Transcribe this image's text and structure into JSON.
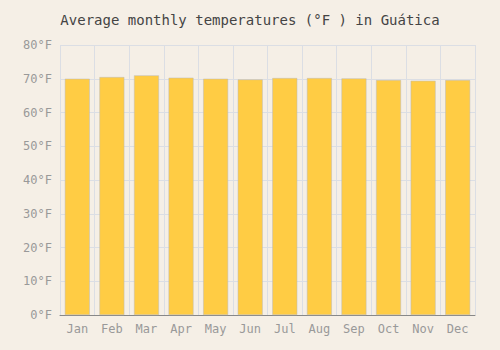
{
  "chart_data": {
    "type": "bar",
    "title": "Average monthly temperatures (°F ) in Guática",
    "categories": [
      "Jan",
      "Feb",
      "Mar",
      "Apr",
      "May",
      "Jun",
      "Jul",
      "Aug",
      "Sep",
      "Oct",
      "Nov",
      "Dec"
    ],
    "values": [
      70.0,
      70.5,
      71.0,
      70.3,
      70.0,
      69.8,
      70.2,
      70.2,
      70.1,
      69.6,
      69.4,
      69.6
    ],
    "color": "#FFCC44",
    "ylim": [
      0,
      80
    ],
    "yticks": [
      {
        "value": 0,
        "label": "0°F"
      },
      {
        "value": 10,
        "label": "10°F"
      },
      {
        "value": 20,
        "label": "20°F"
      },
      {
        "value": 30,
        "label": "30°F"
      },
      {
        "value": 40,
        "label": "40°F"
      },
      {
        "value": 50,
        "label": "50°F"
      },
      {
        "value": 60,
        "label": "60°F"
      },
      {
        "value": 70,
        "label": "70°F"
      },
      {
        "value": 80,
        "label": "80°F"
      }
    ],
    "grid": true
  }
}
